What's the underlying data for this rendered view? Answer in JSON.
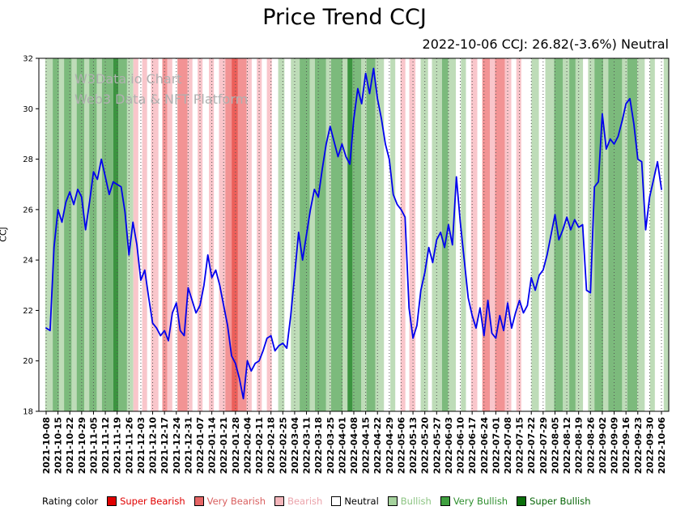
{
  "page": {
    "title": "Price Trend CCJ",
    "subtitle": "2022-10-06 CCJ: 26.82(-3.6%) Neutral",
    "watermark_line1": "W3Data.io Chart",
    "watermark_line2": "Web3 Data & NFT Platform"
  },
  "legend": {
    "label": "Rating color",
    "items": [
      {
        "label": "Super Bearish",
        "color": "#e00000",
        "text_color": "#e00000"
      },
      {
        "label": "Very Bearish",
        "color": "#e66565",
        "text_color": "#d95f5f"
      },
      {
        "label": "Bearish",
        "color": "#f4b6bb",
        "text_color": "#eba3ab"
      },
      {
        "label": "Neutral",
        "color": "#ffffff",
        "text_color": "#000000"
      },
      {
        "label": "Bullish",
        "color": "#a5d29d",
        "text_color": "#8cc482"
      },
      {
        "label": "Very Bullish",
        "color": "#3fa03f",
        "text_color": "#2f8f2f"
      },
      {
        "label": "Super Bullish",
        "color": "#0a6e0a",
        "text_color": "#076607"
      }
    ]
  },
  "chart_data": {
    "type": "line",
    "title": "Price Trend CCJ",
    "xlabel": "",
    "ylabel": "CCJ",
    "ylim": [
      18,
      32
    ],
    "yticks": [
      18,
      20,
      22,
      24,
      26,
      28,
      30,
      32
    ],
    "grid": "vertical-dotted",
    "legend_position": "bottom",
    "line_color": "#0000ee",
    "last_point": {
      "date": "2022-10-06",
      "value": 26.82,
      "change_pct": -3.6,
      "rating": "Neutral"
    },
    "xticklabels": [
      "2021-10-08",
      "2021-10-15",
      "2021-10-22",
      "2021-10-29",
      "2021-11-05",
      "2021-11-12",
      "2021-11-19",
      "2021-11-26",
      "2021-12-03",
      "2021-12-10",
      "2021-12-17",
      "2021-12-24",
      "2021-12-31",
      "2022-01-07",
      "2022-01-14",
      "2022-01-21",
      "2022-01-28",
      "2022-02-04",
      "2022-02-11",
      "2022-02-18",
      "2022-02-25",
      "2022-03-04",
      "2022-03-11",
      "2022-03-18",
      "2022-03-25",
      "2022-04-01",
      "2022-04-08",
      "2022-04-15",
      "2022-04-22",
      "2022-04-29",
      "2022-05-06",
      "2022-05-13",
      "2022-05-20",
      "2022-05-27",
      "2022-06-03",
      "2022-06-10",
      "2022-06-17",
      "2022-06-24",
      "2022-07-01",
      "2022-07-08",
      "2022-07-15",
      "2022-07-22",
      "2022-07-29",
      "2022-08-05",
      "2022-08-12",
      "2022-08-19",
      "2022-08-26",
      "2022-09-02",
      "2022-09-09",
      "2022-09-16",
      "2022-09-23",
      "2022-09-30",
      "2022-10-06"
    ],
    "series": [
      {
        "name": "CCJ",
        "values": [
          21.3,
          21.2,
          24.5,
          26.0,
          25.5,
          26.3,
          26.7,
          26.2,
          26.8,
          26.5,
          25.2,
          26.3,
          27.5,
          27.2,
          28.0,
          27.3,
          26.6,
          27.1,
          27.0,
          26.9,
          25.9,
          24.2,
          25.5,
          24.6,
          23.2,
          23.6,
          22.5,
          21.5,
          21.3,
          21.0,
          21.2,
          20.8,
          21.9,
          22.3,
          21.2,
          21.0,
          22.9,
          22.4,
          21.9,
          22.2,
          23.0,
          24.2,
          23.3,
          23.6,
          23.0,
          22.2,
          21.4,
          20.2,
          19.9,
          19.3,
          18.5,
          20.0,
          19.6,
          19.9,
          20.0,
          20.4,
          20.9,
          21.0,
          20.4,
          20.6,
          20.7,
          20.5,
          21.8,
          23.4,
          25.1,
          24.0,
          25.0,
          26.0,
          26.8,
          26.5,
          27.6,
          28.6,
          29.3,
          28.7,
          28.1,
          28.6,
          28.1,
          27.8,
          29.6,
          30.8,
          30.2,
          31.4,
          30.6,
          31.6,
          30.4,
          29.6,
          28.6,
          28.0,
          26.6,
          26.2,
          26.0,
          25.7,
          22.1,
          20.9,
          21.4,
          22.8,
          23.5,
          24.5,
          23.9,
          24.8,
          25.1,
          24.5,
          25.4,
          24.6,
          27.3,
          25.5,
          24.0,
          22.5,
          21.8,
          21.3,
          22.1,
          21.0,
          22.4,
          21.1,
          20.9,
          21.8,
          21.2,
          22.3,
          21.3,
          21.9,
          22.4,
          21.9,
          22.2,
          23.3,
          22.8,
          23.4,
          23.6,
          24.2,
          25.0,
          25.8,
          24.8,
          25.2,
          25.7,
          25.2,
          25.6,
          25.3,
          25.4,
          22.8,
          22.7,
          26.9,
          27.1,
          29.8,
          28.4,
          28.8,
          28.6,
          28.9,
          29.5,
          30.2,
          30.4,
          29.4,
          28.0,
          27.9,
          25.2,
          26.5,
          27.2,
          27.9,
          26.8
        ]
      }
    ],
    "band_colors": {
      "neutral": "#ffffff",
      "bearish": "#f9c6cb",
      "very_bearish": "#f29394",
      "super_bearish": "#ec5f5a",
      "bullish": "#bedcb8",
      "very_bullish": "#7cba7c",
      "super_bullish": "#3c9440"
    },
    "bands": [
      [
        0.0,
        0.01,
        "neutral"
      ],
      [
        0.01,
        0.022,
        "bullish"
      ],
      [
        0.022,
        0.032,
        "very_bullish"
      ],
      [
        0.032,
        0.04,
        "bullish"
      ],
      [
        0.04,
        0.052,
        "very_bullish"
      ],
      [
        0.052,
        0.06,
        "bullish"
      ],
      [
        0.06,
        0.072,
        "very_bullish"
      ],
      [
        0.072,
        0.08,
        "bullish"
      ],
      [
        0.08,
        0.092,
        "very_bullish"
      ],
      [
        0.092,
        0.1,
        "bullish"
      ],
      [
        0.1,
        0.118,
        "very_bullish"
      ],
      [
        0.118,
        0.126,
        "super_bullish"
      ],
      [
        0.126,
        0.14,
        "very_bullish"
      ],
      [
        0.14,
        0.15,
        "bullish"
      ],
      [
        0.15,
        0.158,
        "bearish"
      ],
      [
        0.158,
        0.164,
        "neutral"
      ],
      [
        0.164,
        0.172,
        "bearish"
      ],
      [
        0.172,
        0.178,
        "neutral"
      ],
      [
        0.178,
        0.19,
        "bearish"
      ],
      [
        0.19,
        0.196,
        "neutral"
      ],
      [
        0.196,
        0.204,
        "very_bearish"
      ],
      [
        0.204,
        0.212,
        "bearish"
      ],
      [
        0.212,
        0.22,
        "neutral"
      ],
      [
        0.22,
        0.236,
        "very_bearish"
      ],
      [
        0.236,
        0.244,
        "bearish"
      ],
      [
        0.244,
        0.252,
        "neutral"
      ],
      [
        0.252,
        0.26,
        "bearish"
      ],
      [
        0.26,
        0.27,
        "neutral"
      ],
      [
        0.27,
        0.278,
        "bearish"
      ],
      [
        0.278,
        0.286,
        "neutral"
      ],
      [
        0.286,
        0.296,
        "bearish"
      ],
      [
        0.296,
        0.306,
        "very_bearish"
      ],
      [
        0.306,
        0.316,
        "super_bearish"
      ],
      [
        0.316,
        0.33,
        "very_bearish"
      ],
      [
        0.33,
        0.338,
        "bearish"
      ],
      [
        0.338,
        0.346,
        "neutral"
      ],
      [
        0.346,
        0.354,
        "bearish"
      ],
      [
        0.354,
        0.362,
        "neutral"
      ],
      [
        0.362,
        0.37,
        "bearish"
      ],
      [
        0.37,
        0.38,
        "neutral"
      ],
      [
        0.38,
        0.39,
        "bullish"
      ],
      [
        0.39,
        0.4,
        "neutral"
      ],
      [
        0.4,
        0.414,
        "bullish"
      ],
      [
        0.414,
        0.43,
        "very_bullish"
      ],
      [
        0.43,
        0.438,
        "bullish"
      ],
      [
        0.438,
        0.456,
        "very_bullish"
      ],
      [
        0.456,
        0.464,
        "bullish"
      ],
      [
        0.464,
        0.482,
        "very_bullish"
      ],
      [
        0.482,
        0.49,
        "bullish"
      ],
      [
        0.49,
        0.498,
        "super_bullish"
      ],
      [
        0.498,
        0.512,
        "very_bullish"
      ],
      [
        0.512,
        0.52,
        "bullish"
      ],
      [
        0.52,
        0.534,
        "very_bullish"
      ],
      [
        0.534,
        0.548,
        "bullish"
      ],
      [
        0.548,
        0.558,
        "neutral"
      ],
      [
        0.558,
        0.566,
        "bullish"
      ],
      [
        0.566,
        0.574,
        "neutral"
      ],
      [
        0.574,
        0.582,
        "bearish"
      ],
      [
        0.582,
        0.588,
        "neutral"
      ],
      [
        0.588,
        0.598,
        "bearish"
      ],
      [
        0.598,
        0.606,
        "neutral"
      ],
      [
        0.606,
        0.618,
        "bullish"
      ],
      [
        0.618,
        0.624,
        "neutral"
      ],
      [
        0.624,
        0.64,
        "bullish"
      ],
      [
        0.64,
        0.65,
        "very_bullish"
      ],
      [
        0.65,
        0.662,
        "bullish"
      ],
      [
        0.662,
        0.67,
        "neutral"
      ],
      [
        0.67,
        0.678,
        "bullish"
      ],
      [
        0.678,
        0.686,
        "neutral"
      ],
      [
        0.686,
        0.696,
        "bearish"
      ],
      [
        0.696,
        0.704,
        "neutral"
      ],
      [
        0.704,
        0.716,
        "very_bearish"
      ],
      [
        0.716,
        0.724,
        "bearish"
      ],
      [
        0.724,
        0.74,
        "very_bearish"
      ],
      [
        0.74,
        0.75,
        "bearish"
      ],
      [
        0.75,
        0.758,
        "neutral"
      ],
      [
        0.758,
        0.766,
        "bearish"
      ],
      [
        0.766,
        0.782,
        "neutral"
      ],
      [
        0.782,
        0.794,
        "bullish"
      ],
      [
        0.794,
        0.804,
        "neutral"
      ],
      [
        0.804,
        0.818,
        "bullish"
      ],
      [
        0.818,
        0.832,
        "very_bullish"
      ],
      [
        0.832,
        0.842,
        "bullish"
      ],
      [
        0.842,
        0.852,
        "very_bullish"
      ],
      [
        0.852,
        0.864,
        "bullish"
      ],
      [
        0.864,
        0.872,
        "neutral"
      ],
      [
        0.872,
        0.882,
        "bullish"
      ],
      [
        0.882,
        0.896,
        "very_bullish"
      ],
      [
        0.896,
        0.904,
        "bullish"
      ],
      [
        0.904,
        0.926,
        "very_bullish"
      ],
      [
        0.926,
        0.934,
        "bullish"
      ],
      [
        0.934,
        0.95,
        "very_bullish"
      ],
      [
        0.95,
        0.962,
        "bullish"
      ],
      [
        0.962,
        0.97,
        "neutral"
      ],
      [
        0.97,
        0.978,
        "bullish"
      ],
      [
        0.978,
        0.992,
        "neutral"
      ],
      [
        0.992,
        1.0,
        "bullish"
      ]
    ]
  }
}
